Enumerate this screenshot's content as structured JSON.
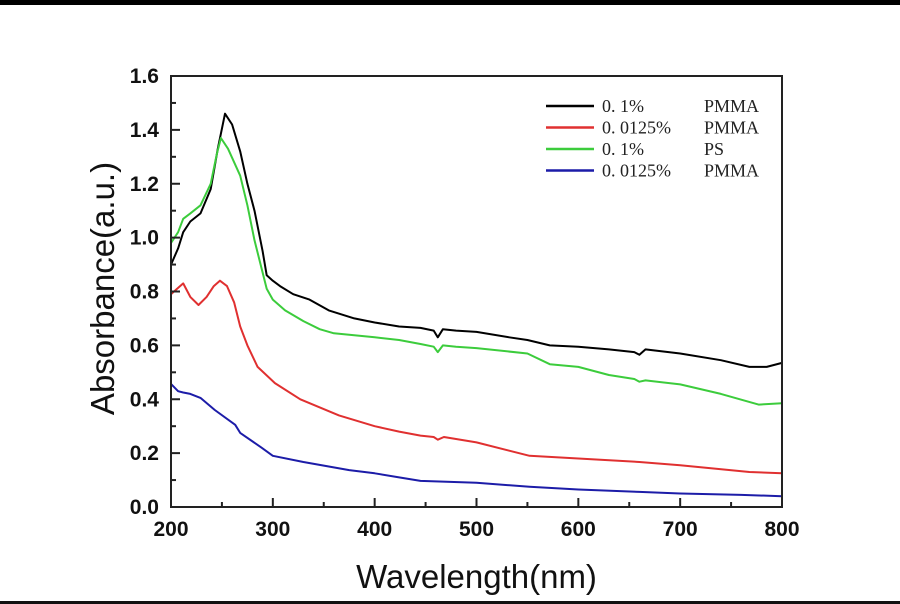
{
  "chart_data": {
    "type": "line",
    "title": "",
    "xlabel": "Wavelength(nm)",
    "ylabel": "Absorbance(a.u.)",
    "xlim": [
      200,
      800
    ],
    "ylim": [
      0.0,
      1.6
    ],
    "xticks": [
      200,
      300,
      400,
      500,
      600,
      700,
      800
    ],
    "xtick_labels": [
      "200",
      "300",
      "400",
      "500",
      "600",
      "700",
      "800"
    ],
    "yticks": [
      0.0,
      0.2,
      0.4,
      0.6,
      0.8,
      1.0,
      1.2,
      1.4,
      1.6
    ],
    "ytick_labels": [
      "0.0",
      "0.2",
      "0.4",
      "0.6",
      "0.8",
      "1.0",
      "1.2",
      "1.4",
      "1.6"
    ],
    "grid": false,
    "legend_position": "top-right",
    "series": [
      {
        "name": "0.1% PMMA",
        "legend_conc": "0. 1%",
        "legend_polymer": "PMMA",
        "color": "#000000",
        "x": [
          200,
          207,
          212,
          219,
          229,
          239,
          246,
          253,
          260,
          268,
          275,
          282,
          290,
          294,
          300,
          307,
          320,
          336,
          355,
          380,
          400,
          424,
          445,
          458,
          462,
          467,
          480,
          500,
          532,
          550,
          572,
          600,
          630,
          655,
          660,
          666,
          700,
          740,
          768,
          785,
          800
        ],
        "y": [
          0.9,
          0.96,
          1.02,
          1.06,
          1.09,
          1.18,
          1.33,
          1.46,
          1.42,
          1.32,
          1.2,
          1.1,
          0.95,
          0.86,
          0.84,
          0.82,
          0.79,
          0.77,
          0.73,
          0.7,
          0.685,
          0.67,
          0.665,
          0.655,
          0.63,
          0.66,
          0.655,
          0.65,
          0.63,
          0.62,
          0.6,
          0.595,
          0.585,
          0.575,
          0.565,
          0.585,
          0.57,
          0.545,
          0.52,
          0.52,
          0.535
        ]
      },
      {
        "name": "0.0125% PMMA",
        "legend_conc": "0. 0125%",
        "legend_polymer": "PMMA",
        "color": "#e03030",
        "x": [
          200,
          206,
          212,
          219,
          227,
          235,
          242,
          248,
          255,
          262,
          268,
          275,
          285,
          302,
          327,
          365,
          400,
          424,
          445,
          458,
          462,
          468,
          500,
          552,
          600,
          660,
          700,
          768,
          800
        ],
        "y": [
          0.79,
          0.81,
          0.83,
          0.78,
          0.75,
          0.78,
          0.82,
          0.84,
          0.82,
          0.76,
          0.67,
          0.6,
          0.52,
          0.46,
          0.4,
          0.34,
          0.3,
          0.28,
          0.265,
          0.26,
          0.25,
          0.26,
          0.24,
          0.19,
          0.18,
          0.167,
          0.155,
          0.13,
          0.125
        ]
      },
      {
        "name": "0.1% PS",
        "legend_conc": "0. 1%",
        "legend_polymer": "PS",
        "color": "#3ccc3c",
        "x": [
          200,
          207,
          212,
          219,
          229,
          239,
          245,
          249,
          256,
          268,
          275,
          282,
          294,
          300,
          312,
          330,
          346,
          360,
          400,
          424,
          445,
          458,
          462,
          467,
          480,
          500,
          550,
          572,
          600,
          630,
          655,
          660,
          666,
          700,
          740,
          777,
          800
        ],
        "y": [
          0.98,
          1.02,
          1.07,
          1.09,
          1.12,
          1.2,
          1.31,
          1.37,
          1.33,
          1.23,
          1.12,
          0.99,
          0.81,
          0.77,
          0.73,
          0.69,
          0.66,
          0.645,
          0.63,
          0.62,
          0.605,
          0.595,
          0.575,
          0.6,
          0.595,
          0.59,
          0.57,
          0.53,
          0.52,
          0.49,
          0.475,
          0.465,
          0.47,
          0.455,
          0.42,
          0.38,
          0.385
        ]
      },
      {
        "name": "0.0125% PMMA",
        "legend_conc": "0. 0125%",
        "legend_polymer": "PMMA",
        "color": "#1c1ca8",
        "x": [
          200,
          207,
          212,
          219,
          229,
          243,
          263,
          268,
          289,
          300,
          330,
          375,
          400,
          424,
          445,
          500,
          552,
          600,
          660,
          700,
          760,
          800
        ],
        "y": [
          0.457,
          0.43,
          0.425,
          0.42,
          0.405,
          0.36,
          0.305,
          0.275,
          0.22,
          0.19,
          0.167,
          0.137,
          0.125,
          0.11,
          0.097,
          0.09,
          0.075,
          0.065,
          0.056,
          0.05,
          0.045,
          0.04
        ]
      }
    ]
  }
}
